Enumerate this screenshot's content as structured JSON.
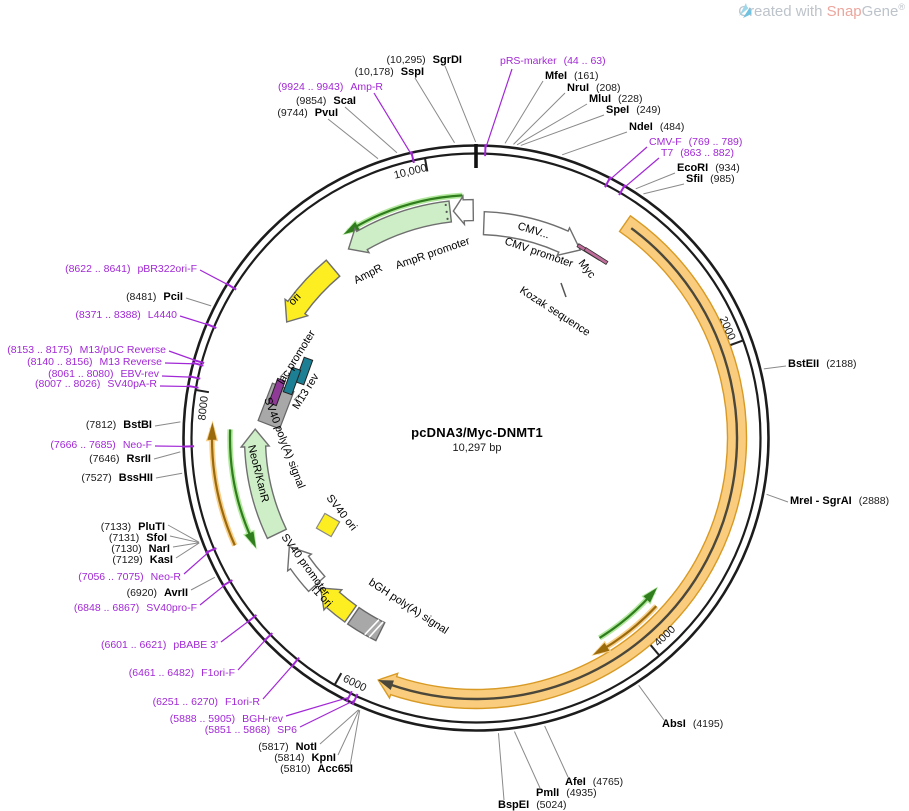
{
  "watermark": {
    "prefix": "Created with ",
    "brand_a": "Snap",
    "brand_b": "Gene",
    "registered": "®"
  },
  "plasmid": {
    "title": "pcDNA3/Myc-DNMT1",
    "length_label": "10,297 bp",
    "total_bp": 10297
  },
  "axis_ticks": [
    "10,000",
    "2000",
    "4000",
    "6000",
    "8000"
  ],
  "sites": [
    {
      "name": "SgrDI",
      "pos": "(10,295)",
      "type": "enzyme"
    },
    {
      "name": "SspI",
      "pos": "(10,178)",
      "type": "enzyme"
    },
    {
      "name": "Amp-R",
      "pos": "(9924 .. 9943)",
      "type": "primer"
    },
    {
      "name": "ScaI",
      "pos": "(9854)",
      "type": "enzyme"
    },
    {
      "name": "PvuI",
      "pos": "(9744)",
      "type": "enzyme"
    },
    {
      "name": "pRS-marker",
      "pos": "(44 .. 63)",
      "type": "primer"
    },
    {
      "name": "MfeI",
      "pos": "(161)",
      "type": "enzyme"
    },
    {
      "name": "NruI",
      "pos": "(208)",
      "type": "enzyme"
    },
    {
      "name": "MluI",
      "pos": "(228)",
      "type": "enzyme"
    },
    {
      "name": "SpeI",
      "pos": "(249)",
      "type": "enzyme"
    },
    {
      "name": "NdeI",
      "pos": "(484)",
      "type": "enzyme"
    },
    {
      "name": "CMV-F",
      "pos": "(769 .. 789)",
      "type": "primer"
    },
    {
      "name": "T7",
      "pos": "(863 .. 882)",
      "type": "primer"
    },
    {
      "name": "EcoRI",
      "pos": "(934)",
      "type": "enzyme"
    },
    {
      "name": "SfiI",
      "pos": "(985)",
      "type": "enzyme"
    },
    {
      "name": "BstEII",
      "pos": "(2188)",
      "type": "enzyme"
    },
    {
      "name": "MreI - SgrAI",
      "pos": "(2888)",
      "type": "enzyme"
    },
    {
      "name": "AbsI",
      "pos": "(4195)",
      "type": "enzyme"
    },
    {
      "name": "AfeI",
      "pos": "(4765)",
      "type": "enzyme"
    },
    {
      "name": "PmlI",
      "pos": "(4935)",
      "type": "enzyme"
    },
    {
      "name": "BspEI",
      "pos": "(5024)",
      "type": "enzyme"
    },
    {
      "name": "NotI",
      "pos": "(5817)",
      "type": "enzyme"
    },
    {
      "name": "KpnI",
      "pos": "(5814)",
      "type": "enzyme"
    },
    {
      "name": "Acc65I",
      "pos": "(5810)",
      "type": "enzyme"
    },
    {
      "name": "BGH-rev",
      "pos": "(5888 .. 5905)",
      "type": "primer"
    },
    {
      "name": "SP6",
      "pos": "(5851 .. 5868)",
      "type": "primer"
    },
    {
      "name": "F1ori-R",
      "pos": "(6251 .. 6270)",
      "type": "primer"
    },
    {
      "name": "F1ori-F",
      "pos": "(6461 .. 6482)",
      "type": "primer"
    },
    {
      "name": "pBABE 3'",
      "pos": "(6601 .. 6621)",
      "type": "primer"
    },
    {
      "name": "SV40pro-F",
      "pos": "(6848 .. 6867)",
      "type": "primer"
    },
    {
      "name": "AvrII",
      "pos": "(6920)",
      "type": "enzyme"
    },
    {
      "name": "Neo-R",
      "pos": "(7056 .. 7075)",
      "type": "primer"
    },
    {
      "name": "KasI",
      "pos": "(7129)",
      "type": "enzyme"
    },
    {
      "name": "NarI",
      "pos": "(7130)",
      "type": "enzyme"
    },
    {
      "name": "SfoI",
      "pos": "(7131)",
      "type": "enzyme"
    },
    {
      "name": "PluTI",
      "pos": "(7133)",
      "type": "enzyme"
    },
    {
      "name": "BssHII",
      "pos": "(7527)",
      "type": "enzyme"
    },
    {
      "name": "RsrII",
      "pos": "(7646)",
      "type": "enzyme"
    },
    {
      "name": "Neo-F",
      "pos": "(7666 .. 7685)",
      "type": "primer"
    },
    {
      "name": "BstBI",
      "pos": "(7812)",
      "type": "enzyme"
    },
    {
      "name": "SV40pA-R",
      "pos": "(8007 .. 8026)",
      "type": "primer"
    },
    {
      "name": "EBV-rev",
      "pos": "(8061 .. 8080)",
      "type": "primer"
    },
    {
      "name": "M13 Reverse",
      "pos": "(8140 .. 8156)",
      "type": "primer"
    },
    {
      "name": "M13/pUC Reverse",
      "pos": "(8153 .. 8175)",
      "type": "primer"
    },
    {
      "name": "L4440",
      "pos": "(8371 .. 8388)",
      "type": "primer"
    },
    {
      "name": "PciI",
      "pos": "(8481)",
      "type": "enzyme"
    },
    {
      "name": "pBR322ori-F",
      "pos": "(8622 .. 8641)",
      "type": "primer"
    }
  ],
  "features": [
    {
      "label": "CMV..."
    },
    {
      "label": "CMV promoter"
    },
    {
      "label": "Myc"
    },
    {
      "label": "Kozak sequence"
    },
    {
      "label": "AmpR"
    },
    {
      "label": "AmpR promoter"
    },
    {
      "label": "ori"
    },
    {
      "label": "lac promoter"
    },
    {
      "label": "M13 rev"
    },
    {
      "label": "SV40 poly(A) signal"
    },
    {
      "label": "NeoR/KanR"
    },
    {
      "label": "SV40 promoter"
    },
    {
      "label": "SV40 ori"
    },
    {
      "label": "f1 ori"
    },
    {
      "label": "bGH poly(A) signal"
    }
  ],
  "colors": {
    "ring": "#1c1c1c",
    "enzyme_text": "#000000",
    "pos_text": "#1a1a1a",
    "primer": "#a228d6",
    "pointer_gray": "#8a8a8a",
    "gene_green_fill": "#cdeec6",
    "gene_stroke": "#6f6f6f",
    "yellow_fill": "#fcee21",
    "white_fill": "#ffffff",
    "gray_fill": "#a8a8a8",
    "insert_fill": "#f9cd7d",
    "insert_stroke": "#d89a25",
    "insert_core": "#4b473b",
    "orf_green_dark": "#2f7d1c",
    "orf_green_light": "#b2e89e",
    "orf_orange_dark": "#9b6a0b",
    "orf_orange_light": "#f7cf8a",
    "teal_box": "#1d7f93",
    "magenta_box": "#8e3a96",
    "myc_pink": "#c06c9a"
  }
}
